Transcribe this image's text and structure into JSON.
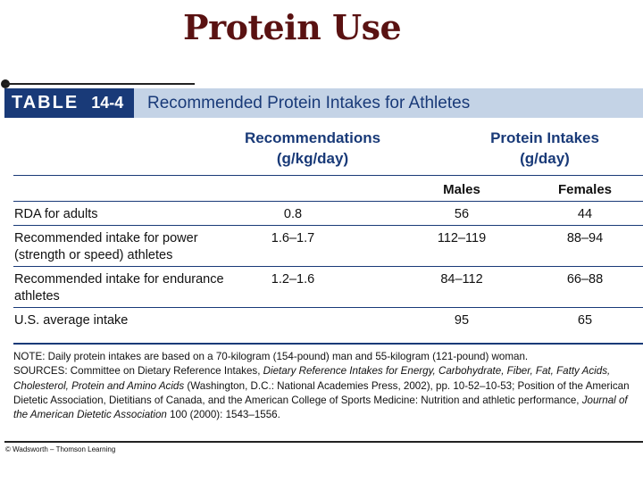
{
  "slide": {
    "title": "Protein Use"
  },
  "table": {
    "label": "TABLE",
    "number": "14-4",
    "title": "Recommended Protein Intakes for Athletes",
    "group_headers": {
      "recommendations_line1": "Recommendations",
      "recommendations_line2": "(g/kg/day)",
      "protein_line1": "Protein Intakes",
      "protein_line2": "(g/day)"
    },
    "subheaders": {
      "males": "Males",
      "females": "Females"
    },
    "rows": [
      {
        "label": "RDA for adults",
        "recommendation": "0.8",
        "males": "56",
        "females": "44"
      },
      {
        "label_line1": "Recommended intake for power",
        "label_line2": "(strength or speed) athletes",
        "recommendation": "1.6–1.7",
        "males": "112–119",
        "females": "88–94"
      },
      {
        "label_line1": "Recommended intake for endurance",
        "label_line2": "athletes",
        "recommendation": "1.2–1.6",
        "males": "84–112",
        "females": "66–88"
      },
      {
        "label": "U.S. average intake",
        "recommendation": "",
        "males": "95",
        "females": "65"
      }
    ],
    "notes": {
      "note": "NOTE: Daily protein intakes are based on a 70-kilogram (154-pound) man and 55-kilogram (121-pound) woman.",
      "sources_prefix": "SOURCES: Committee on Dietary Reference Intakes, ",
      "sources_title1": "Dietary Reference Intakes for Energy, Carbohydrate, Fiber, Fat, Fatty Acids, Cholesterol, Protein and Amino Acids",
      "sources_mid": " (Washington, D.C.: National Academies Press, 2002), pp. 10-52–10-53; Position of the American Dietetic Association, Dietitians of Canada, and the American College of Sports Medicine: Nutrition and athletic performance, ",
      "sources_title2": "Journal of the American Dietetic Association",
      "sources_suffix": " 100 (2000): 1543–1556."
    }
  },
  "credit": "© Wadsworth – Thomson Learning",
  "colors": {
    "navy": "#193a78",
    "header_bar": "#c4d3e6",
    "title": "#5a1212"
  }
}
